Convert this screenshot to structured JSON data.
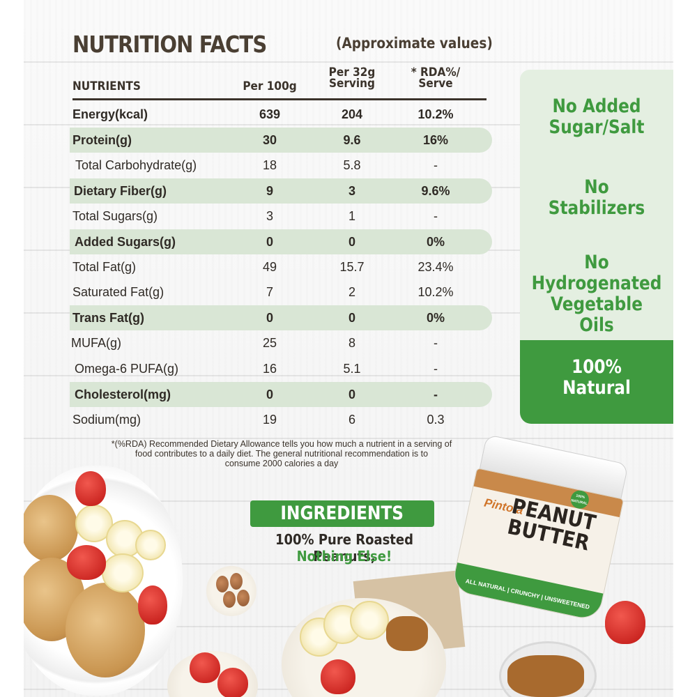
{
  "title": "NUTRITION FACTS",
  "subtitle": "(Approximate values)",
  "headers": {
    "nutrients": "NUTRIENTS",
    "per100": "Per 100g",
    "per_serving": "Per 32g Serving",
    "rda": "* RDA%/ Serve"
  },
  "rows": [
    {
      "name": "Energy(kcal)",
      "v1": "639",
      "v2": "204",
      "v3": "10.2%"
    },
    {
      "name": "Protein(g)",
      "v1": "30",
      "v2": "9.6",
      "v3": "16%"
    },
    {
      "name": "Total Carbohydrate(g)",
      "v1": "18",
      "v2": "5.8",
      "v3": "-"
    },
    {
      "name": "Dietary Fiber(g)",
      "v1": "9",
      "v2": "3",
      "v3": "9.6%"
    },
    {
      "name": "Total Sugars(g)",
      "v1": "3",
      "v2": "1",
      "v3": "-"
    },
    {
      "name": "Added Sugars(g)",
      "v1": "0",
      "v2": "0",
      "v3": "0%"
    },
    {
      "name": "Total Fat(g)",
      "v1": "49",
      "v2": "15.7",
      "v3": "23.4%"
    },
    {
      "name": "Saturated Fat(g)",
      "v1": "7",
      "v2": "2",
      "v3": "10.2%"
    },
    {
      "name": "Trans Fat(g)",
      "v1": "0",
      "v2": "0",
      "v3": "0%"
    },
    {
      "name": "MUFA(g)",
      "v1": "25",
      "v2": "8",
      "v3": "-"
    },
    {
      "name": "Omega-6 PUFA(g)",
      "v1": "16",
      "v2": "5.1",
      "v3": "-"
    },
    {
      "name": "Cholesterol(mg)",
      "v1": "0",
      "v2": "0",
      "v3": "-"
    },
    {
      "name": "Sodium(mg)",
      "v1": "19",
      "v2": "6",
      "v3": "0.3"
    }
  ],
  "claims": {
    "sugar_l1": "No Added",
    "sugar_l2": "Sugar/Salt",
    "stab_l1": "No",
    "stab_l2": "Stabilizers",
    "hydro_l1": "No",
    "hydro_l2": "Hydrogenated",
    "hydro_l3": "Vegetable Oils",
    "natural_l1": "100%",
    "natural_l2": "Natural"
  },
  "footnote": {
    "l1": "*(%RDA) Recommended Dietary Allowance tells you how much a nutrient in a serving of",
    "l2": "food contributes to a daily diet. The general nutritional recommendation is to",
    "l3": "consume 2000 calories a day"
  },
  "ingredients": {
    "heading": "INGREDIENTS",
    "line1": "100% Pure Roasted Peanuts,",
    "line2": "Nothing Else!"
  },
  "jar": {
    "brand": "Pintola",
    "name_l1": "PEANUT",
    "name_l2": "BUTTER",
    "subtitle": "ALL NATURAL | CRUNCHY | UNSWEETENED",
    "badge": "100% NATURAL"
  },
  "colors": {
    "green": "#3f9a3f",
    "light_green": "#d9e6d5",
    "text_dark": "#2f2a25"
  }
}
